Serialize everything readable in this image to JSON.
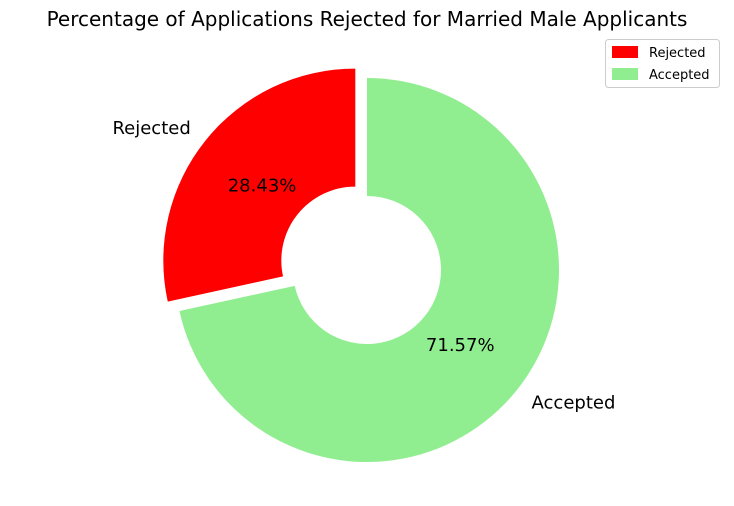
{
  "chart_data": {
    "type": "pie",
    "title": "Percentage of Applications Rejected for Married Male Applicants",
    "slices": [
      {
        "label": "Rejected",
        "value": 28.43,
        "display": "28.43%",
        "color": "#ff0000"
      },
      {
        "label": "Accepted",
        "value": 71.57,
        "display": "71.57%",
        "color": "#90ee90"
      }
    ],
    "donut": true,
    "exploded": "Rejected",
    "legend": {
      "placement": "top-right",
      "entries": [
        "Rejected",
        "Accepted"
      ]
    }
  }
}
